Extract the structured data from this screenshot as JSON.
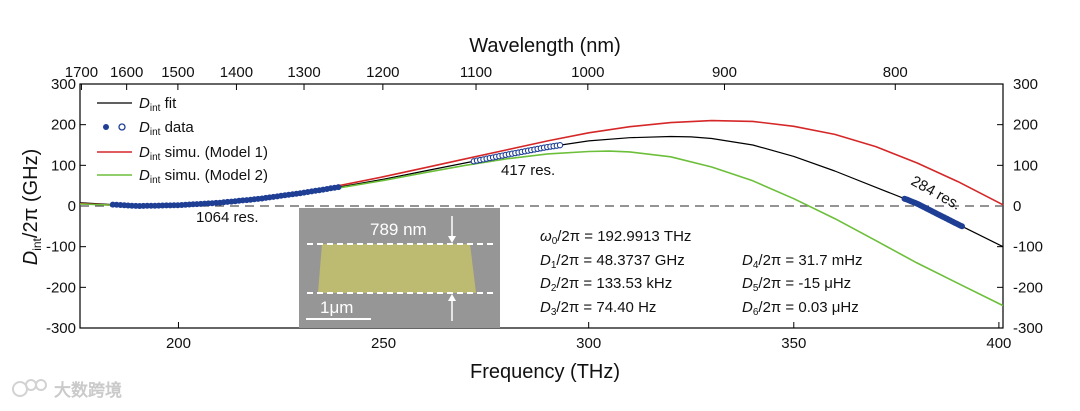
{
  "chart_data": {
    "type": "line",
    "xlabel": "Frequency (THz)",
    "ylabel_main": "D",
    "ylabel_sub": "int",
    "ylabel_rest": "/2π (GHz)",
    "top_axis_label": "Wavelength (nm)",
    "xlim": [
      176,
      401
    ],
    "ylim": [
      -300,
      300
    ],
    "x_ticks": [
      "200",
      "250",
      "300",
      "350",
      "400"
    ],
    "x_tick_values": [
      200,
      250,
      300,
      350,
      400
    ],
    "y_ticks": [
      "300",
      "200",
      "100",
      "0",
      "-100",
      "-200",
      "-300"
    ],
    "y_tick_values": [
      300,
      200,
      100,
      0,
      -100,
      -200,
      -300
    ],
    "y_ticks_right": [
      "300",
      "200",
      "100",
      "0",
      "-100",
      "-200",
      "-300"
    ],
    "top_ticks": [
      "1700",
      "1600",
      "1500",
      "1400",
      "1300",
      "1200",
      "1100",
      "1000",
      "900",
      "800"
    ],
    "top_tick_values": [
      1700,
      1600,
      1500,
      1400,
      1300,
      1200,
      1100,
      1000,
      900,
      800
    ],
    "zero_line": "dashed",
    "legend": [
      {
        "prefix": "D",
        "sub": "int",
        "rest": " fit",
        "color": "#000000",
        "kind": "line"
      },
      {
        "prefix": "D",
        "sub": "int",
        "rest": " data",
        "color": "#1f3f95",
        "kind": "markers"
      },
      {
        "prefix": "D",
        "sub": "int",
        "rest": " simu. (Model 1)",
        "color": "#d62728",
        "kind": "line"
      },
      {
        "prefix": "D",
        "sub": "int",
        "rest": " simu. (Model 2)",
        "color": "#6cbf3a",
        "kind": "line"
      }
    ],
    "series": [
      {
        "name": "Dint fit",
        "color": "#000000",
        "x": [
          176,
          190,
          200,
          210,
          220,
          230,
          240,
          250,
          260,
          270,
          280,
          290,
          300,
          310,
          320,
          325,
          330,
          340,
          350,
          360,
          370,
          380,
          390,
          401
        ],
        "y": [
          8,
          0,
          2,
          8,
          18,
          32,
          48,
          66,
          86,
          106,
          126,
          145,
          160,
          168,
          171,
          170,
          166,
          150,
          122,
          86,
          46,
          6,
          -45,
          -100
        ]
      },
      {
        "name": "Dint simu. (Model 1)",
        "color": "#d62728",
        "x": [
          176,
          190,
          200,
          210,
          220,
          230,
          240,
          250,
          260,
          270,
          280,
          290,
          300,
          310,
          320,
          330,
          340,
          350,
          360,
          370,
          380,
          390,
          401
        ],
        "y": [
          6,
          -1,
          2,
          10,
          20,
          34,
          52,
          72,
          94,
          116,
          138,
          160,
          180,
          195,
          205,
          210,
          208,
          196,
          176,
          146,
          106,
          60,
          3
        ]
      },
      {
        "name": "Dint simu. (Model 2)",
        "color": "#6cbf3a",
        "x": [
          176,
          190,
          200,
          210,
          220,
          230,
          240,
          250,
          260,
          270,
          280,
          290,
          300,
          305,
          310,
          320,
          330,
          340,
          350,
          360,
          370,
          380,
          390,
          401
        ],
        "y": [
          5,
          0,
          2,
          7,
          17,
          30,
          46,
          63,
          82,
          100,
          116,
          128,
          134,
          135,
          133,
          121,
          96,
          62,
          18,
          -31,
          -85,
          -140,
          -190,
          -245
        ]
      }
    ],
    "data_segments": [
      {
        "name": "1064 res.",
        "x_start": 184,
        "x_end": 239,
        "count": 60
      },
      {
        "name": "417 res.",
        "x_start": 272,
        "x_end": 293,
        "count": 28
      },
      {
        "name": "284 res.",
        "x_start": 377,
        "x_end": 391,
        "count": 40
      }
    ],
    "annotations": [
      {
        "text": "1064 res.",
        "x": 197,
        "y": -33
      },
      {
        "text": "417 res.",
        "x": 273,
        "y": 82
      },
      {
        "text": "284 res.",
        "x": 377,
        "y": 19
      }
    ],
    "parameters_left": [
      {
        "sym": "ω",
        "sub": "0",
        "rest": "/2π = 192.9913 THz"
      },
      {
        "sym": "D",
        "sub": "1",
        "rest": "/2π = 48.3737 GHz"
      },
      {
        "sym": "D",
        "sub": "2",
        "rest": "/2π = 133.53 kHz"
      },
      {
        "sym": "D",
        "sub": "3",
        "rest": "/2π = 74.40 Hz"
      }
    ],
    "parameters_right": [
      {
        "sym": "D",
        "sub": "4",
        "rest": "/2π = 31.7 mHz"
      },
      {
        "sym": "D",
        "sub": "5",
        "rest": "/2π = -15 μHz"
      },
      {
        "sym": "D",
        "sub": "6",
        "rest": "/2π = 0.03 μHz"
      }
    ],
    "inset": {
      "height_label": "789 nm",
      "scale_label": "1μm"
    }
  },
  "watermark": {
    "text": "大数跨境"
  }
}
